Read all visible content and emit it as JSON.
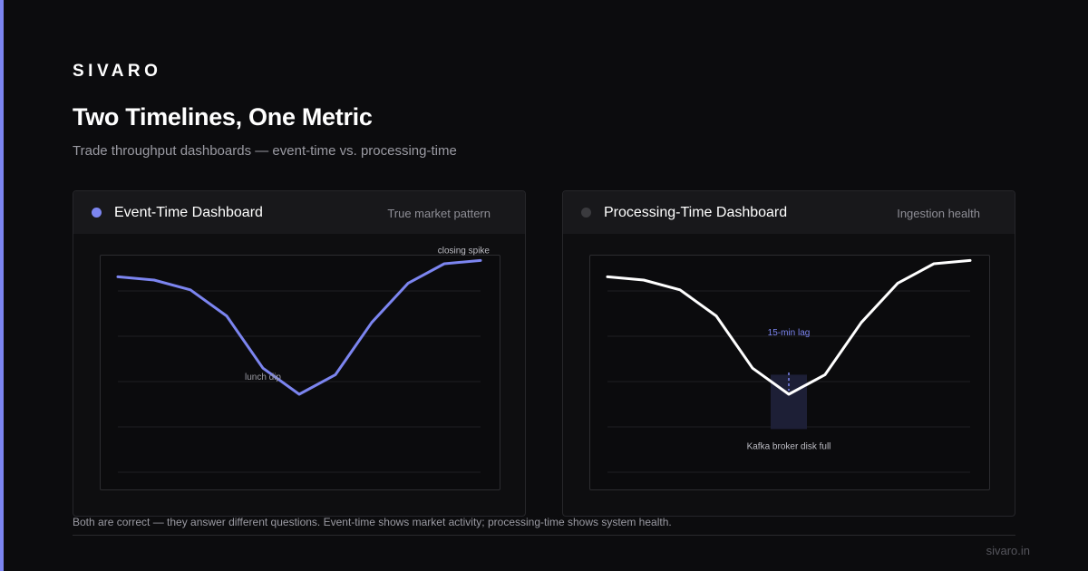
{
  "brand": "SIVARO",
  "title": "Two Timelines, One Metric",
  "subtitle": "Trade throughput dashboards — event-time vs. processing-time",
  "footer_note": "Both are correct — they answer different questions. Event-time shows market activity; processing-time shows system health.",
  "site": "sivaro.in",
  "colors": {
    "accent": "#7c85f0",
    "event_line": "#7c85f0",
    "processing_line": "#ffffff",
    "processing_dot": "#3a3a3e"
  },
  "panels": {
    "event": {
      "title": "Event-Time Dashboard",
      "tag": "True market pattern"
    },
    "processing": {
      "title": "Processing-Time Dashboard",
      "tag": "Ingestion health"
    }
  },
  "chart_data": [
    {
      "type": "line",
      "title": "Event-Time Dashboard",
      "xlabel": "",
      "ylabel": "",
      "x": [
        0,
        1,
        2,
        3,
        4,
        5,
        6,
        7,
        8,
        9,
        10
      ],
      "ylim": [
        0,
        100
      ],
      "grid": true,
      "series": [
        {
          "values": [
            92,
            90,
            84,
            68,
            36,
            20,
            32,
            64,
            88,
            100,
            102
          ]
        }
      ],
      "annotations": [
        {
          "text": "lunch dip",
          "x": 5,
          "y": 20
        },
        {
          "text": "closing spike",
          "x": 10,
          "y": 102
        }
      ]
    },
    {
      "type": "line",
      "title": "Processing-Time Dashboard",
      "xlabel": "",
      "ylabel": "",
      "x": [
        0,
        1,
        2,
        3,
        4,
        5,
        6,
        7,
        8,
        9,
        10
      ],
      "ylim": [
        0,
        100
      ],
      "grid": true,
      "series": [
        {
          "values": [
            92,
            90,
            84,
            68,
            36,
            20,
            32,
            64,
            88,
            100,
            102
          ]
        }
      ],
      "annotations": [
        {
          "text": "15-min lag",
          "x": 5,
          "y": 20
        },
        {
          "text": "Kafka broker disk full",
          "x": 5,
          "y": -8
        }
      ]
    }
  ]
}
